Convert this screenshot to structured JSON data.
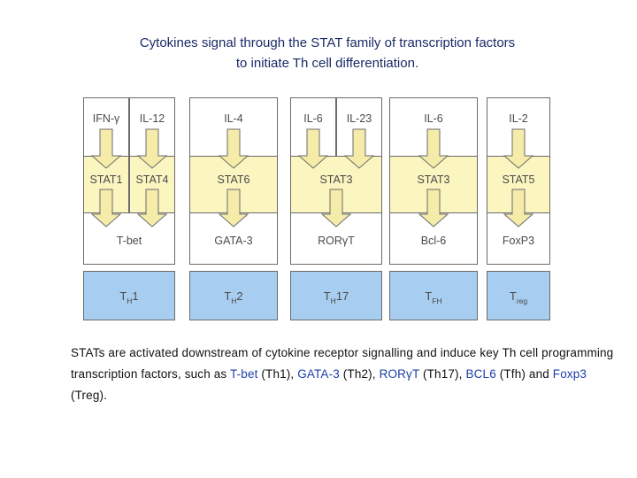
{
  "heading": {
    "line1": "Cytokines signal through the STAT family of transcription factors",
    "line2": "to initiate Th cell differentiation."
  },
  "cytokines": [
    "IFN-γ",
    "IL-12",
    "IL-4",
    "IL-6",
    "IL-23",
    "IL-6",
    "IL-2"
  ],
  "stats": [
    "STAT1",
    "STAT4",
    "STAT6",
    "STAT3",
    "STAT3",
    "STAT5"
  ],
  "transcription_factors": [
    "T-bet",
    "GATA-3",
    "RORγT",
    "Bcl-6",
    "FoxP3"
  ],
  "th_subsets": [
    {
      "base": "T",
      "sub": "H",
      "suffix": "1"
    },
    {
      "base": "T",
      "sub": "H",
      "suffix": "2"
    },
    {
      "base": "T",
      "sub": "H",
      "suffix": "17"
    },
    {
      "base": "T",
      "sub": "FH",
      "suffix": ""
    },
    {
      "base": "T",
      "sub": "reg",
      "suffix": ""
    }
  ],
  "colors": {
    "cytokine_fill": "#ffffff",
    "stat_fill": "#fbf5c0",
    "arrow_fill": "#f4eca8",
    "tf_fill": "#ffffff",
    "subset_fill": "#a7cdf0",
    "border": "#6b6b6b",
    "text": "#4a4a4a",
    "highlight": "#1d3fa6"
  },
  "caption": {
    "part1": "STATs are activated downstream of cytokine receptor signalling and induce key Th cell programming transcription factors, such as ",
    "tbet": "T-bet",
    "part2": " (Th1), ",
    "gata3": "GATA-3",
    "part3": " (Th2), ",
    "rorgt": "RORγT",
    "part4": " (Th17), ",
    "bcl6": "BCL6",
    "part5": " (Tfh) and ",
    "foxp3": "Foxp3",
    "part6": " (Treg)."
  }
}
